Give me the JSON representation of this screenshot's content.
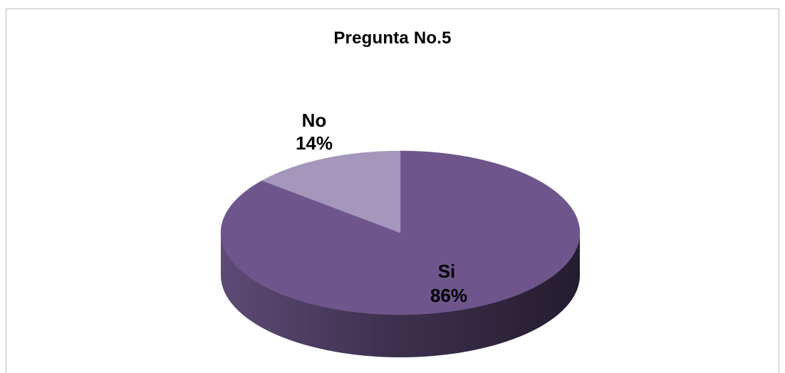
{
  "chart_data": {
    "type": "pie",
    "title": "Pregunta No.5",
    "slices": [
      {
        "label": "Si",
        "percent_label": "86%",
        "value": 86,
        "color": "#6e568c"
      },
      {
        "label": "No",
        "percent_label": "14%",
        "value": 14,
        "color": "#a497bb"
      }
    ],
    "style": "3d",
    "legend": "none"
  }
}
